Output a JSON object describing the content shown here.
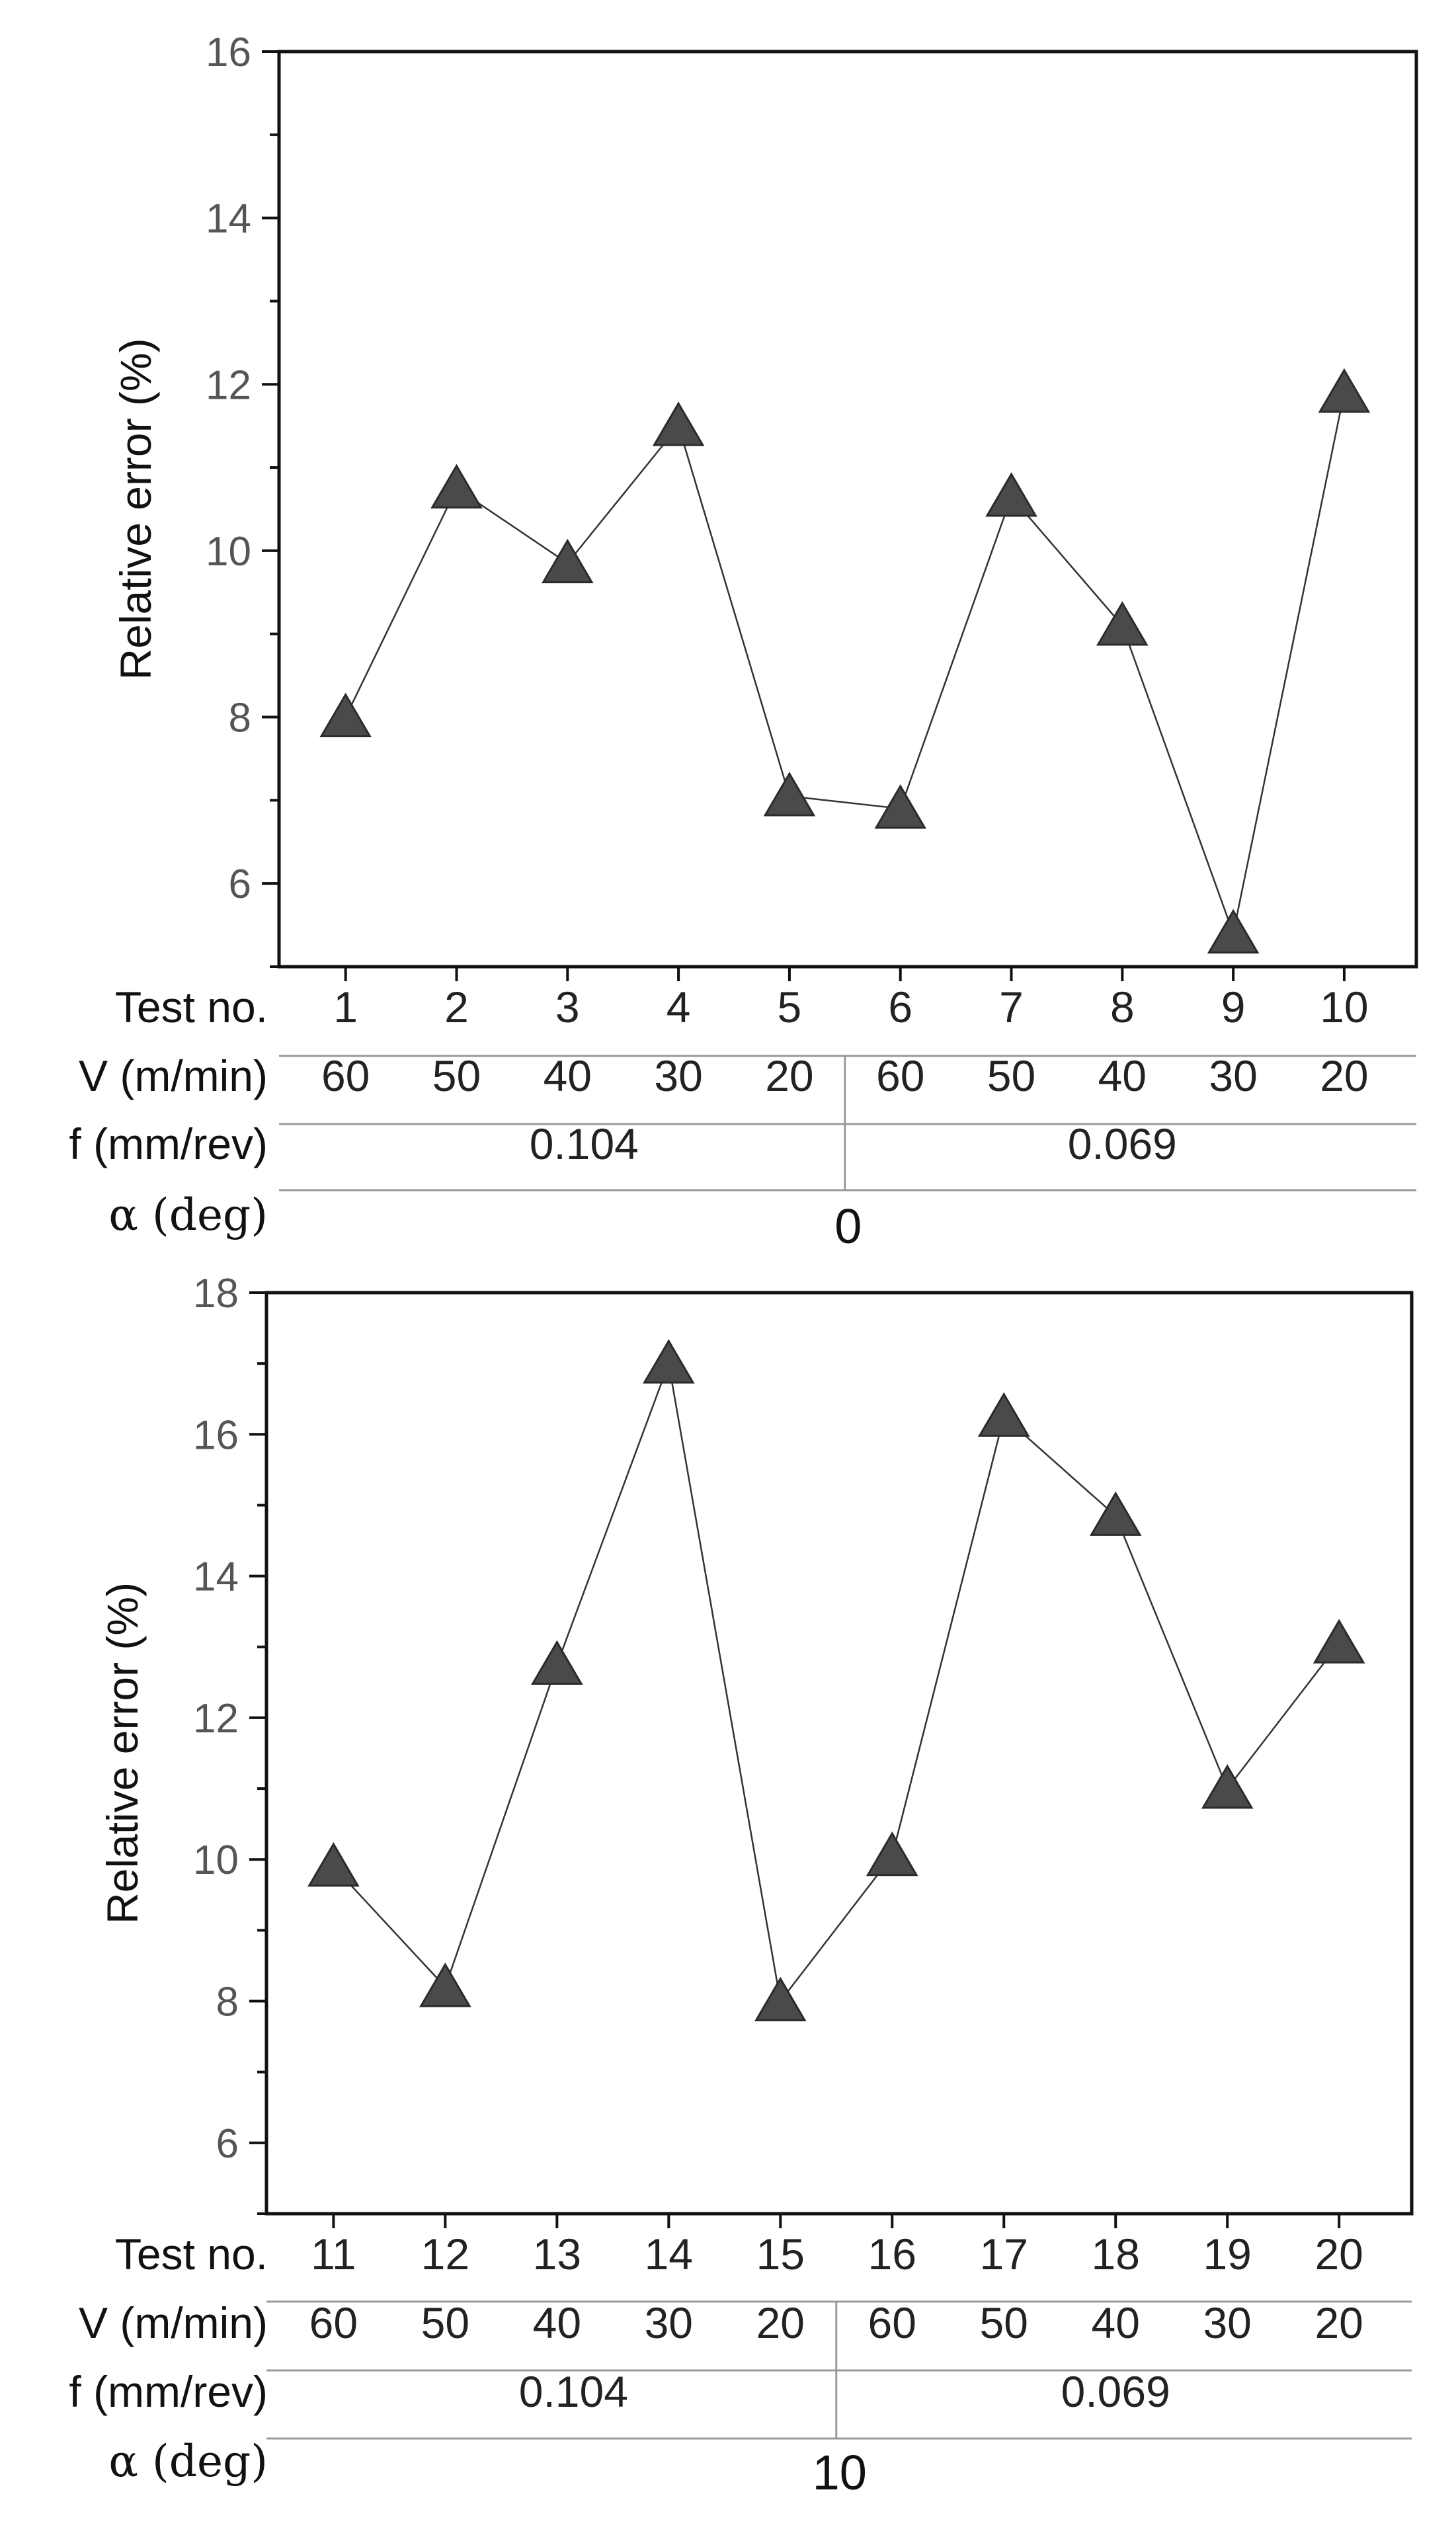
{
  "chart_data": [
    {
      "type": "line",
      "ylabel": "Relative error (%)",
      "ylim": [
        5,
        16
      ],
      "yticks": [
        6,
        8,
        10,
        12,
        14,
        16
      ],
      "x": [
        1,
        2,
        3,
        4,
        5,
        6,
        7,
        8,
        9,
        10
      ],
      "series": [
        {
          "name": "Relative error",
          "marker": "triangle",
          "values": [
            8.0,
            10.75,
            9.85,
            11.5,
            7.05,
            6.9,
            10.65,
            9.1,
            5.4,
            11.9
          ]
        }
      ],
      "table": {
        "row_labels": {
          "test": "Test no.",
          "v": "V (m/min)",
          "f": "f (mm/rev)",
          "alpha": "α (deg)"
        },
        "test_no": [
          "1",
          "2",
          "3",
          "4",
          "5",
          "6",
          "7",
          "8",
          "9",
          "10"
        ],
        "v_values": [
          "60",
          "50",
          "40",
          "30",
          "20",
          "60",
          "50",
          "40",
          "30",
          "20"
        ],
        "f_values": [
          "0.104",
          "0.069"
        ],
        "alpha_value": "0"
      }
    },
    {
      "type": "line",
      "ylabel": "Relative error (%)",
      "ylim": [
        5,
        18
      ],
      "yticks": [
        6,
        8,
        10,
        12,
        14,
        16,
        18
      ],
      "x": [
        11,
        12,
        13,
        14,
        15,
        16,
        17,
        18,
        19,
        20
      ],
      "series": [
        {
          "name": "Relative error",
          "marker": "triangle",
          "values": [
            9.9,
            8.2,
            12.75,
            17.0,
            8.0,
            10.05,
            16.25,
            14.85,
            11.0,
            13.05
          ]
        }
      ],
      "table": {
        "row_labels": {
          "test": "Test no.",
          "v": "V (m/min)",
          "f": "f (mm/rev)",
          "alpha": "α (deg)"
        },
        "test_no": [
          "11",
          "12",
          "13",
          "14",
          "15",
          "16",
          "17",
          "18",
          "19",
          "20"
        ],
        "v_values": [
          "60",
          "50",
          "40",
          "30",
          "20",
          "60",
          "50",
          "40",
          "30",
          "20"
        ],
        "f_values": [
          "0.104",
          "0.069"
        ],
        "alpha_value": "10"
      }
    }
  ]
}
